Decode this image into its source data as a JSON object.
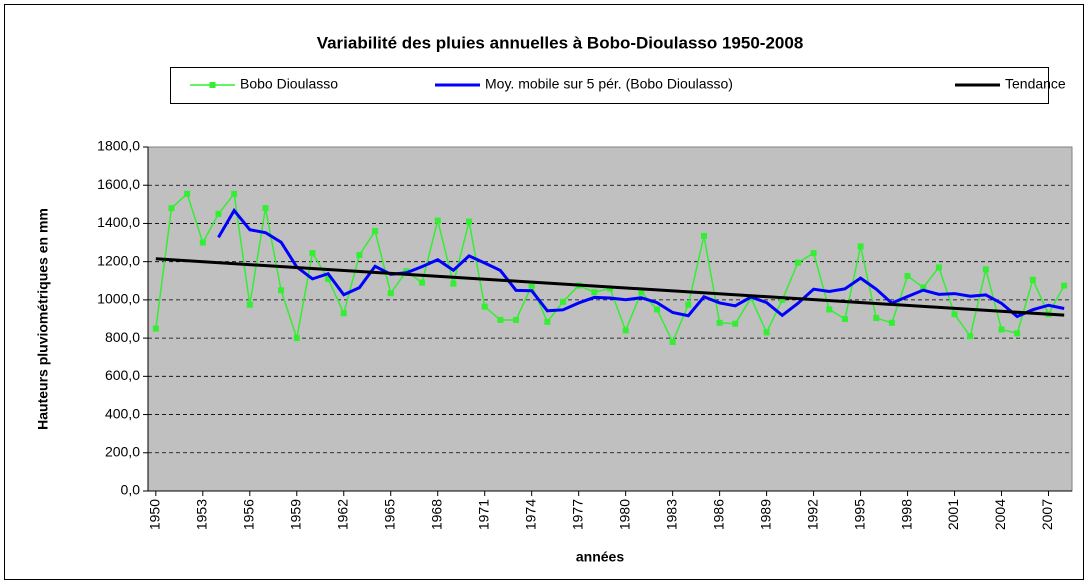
{
  "chart_data": {
    "type": "line",
    "title": "Variabilité des pluies annuelles à Bobo-Dioulasso 1950-2008",
    "x_label": "années",
    "y_label": "Hauteurs pluviométriques en mm",
    "x": [
      1950,
      1951,
      1952,
      1953,
      1954,
      1955,
      1956,
      1957,
      1958,
      1959,
      1960,
      1961,
      1962,
      1963,
      1964,
      1965,
      1966,
      1967,
      1968,
      1969,
      1970,
      1971,
      1972,
      1973,
      1974,
      1975,
      1976,
      1977,
      1978,
      1979,
      1980,
      1981,
      1982,
      1983,
      1984,
      1985,
      1986,
      1987,
      1988,
      1989,
      1990,
      1991,
      1992,
      1993,
      1994,
      1995,
      1996,
      1997,
      1998,
      1999,
      2000,
      2001,
      2002,
      2003,
      2004,
      2005,
      2006,
      2007,
      2008
    ],
    "xlim": [
      1949.5,
      2008.5
    ],
    "xticks": [
      1950,
      1953,
      1956,
      1959,
      1962,
      1965,
      1968,
      1971,
      1974,
      1977,
      1980,
      1983,
      1986,
      1989,
      1992,
      1995,
      1998,
      2001,
      2004,
      2007
    ],
    "ylim": [
      0,
      1800
    ],
    "yticks": [
      {
        "value": 0,
        "label": "0,0"
      },
      {
        "value": 200,
        "label": "200,0"
      },
      {
        "value": 400,
        "label": "400,0"
      },
      {
        "value": 600,
        "label": "600,0"
      },
      {
        "value": 800,
        "label": "800,0"
      },
      {
        "value": 1000,
        "label": "1000,0"
      },
      {
        "value": 1200,
        "label": "1200,0"
      },
      {
        "value": 1400,
        "label": "1400,0"
      },
      {
        "value": 1600,
        "label": "1600,0"
      },
      {
        "value": 1800,
        "label": "1800,0"
      }
    ],
    "grid": true,
    "series": [
      {
        "name": "Bobo Dioulasso",
        "color": "#33ee33",
        "marker": "square",
        "values": [
          850,
          1480,
          1555,
          1300,
          1450,
          1555,
          975,
          1480,
          1050,
          800,
          1245,
          1110,
          930,
          1235,
          1360,
          1035,
          1150,
          1090,
          1415,
          1085,
          1410,
          965,
          895,
          895,
          1075,
          885,
          990,
          1075,
          1040,
          1060,
          840,
          1040,
          950,
          780,
          975,
          1335,
          880,
          875,
          1010,
          830,
          1000,
          1195,
          1245,
          950,
          900,
          1280,
          905,
          880,
          1125,
          1065,
          1170,
          925,
          810,
          1160,
          845,
          825,
          1105,
          925,
          1075
        ]
      },
      {
        "name": "Moy. mobile sur 5 pér. (Bobo Dioulasso)",
        "color": "#0000ff",
        "values": [
          null,
          null,
          null,
          null,
          1327,
          1468,
          1367,
          1352,
          1302,
          1172,
          1110,
          1137,
          1027,
          1064,
          1176,
          1134,
          1142,
          1174,
          1210,
          1155,
          1230,
          1193,
          1154,
          1050,
          1048,
          943,
          948,
          984,
          1013,
          1010,
          1001,
          1011,
          986,
          934,
          917,
          1016,
          984,
          969,
          1015,
          986,
          919,
          982,
          1056,
          1044,
          1058,
          1114,
          1056,
          983,
          1018,
          1051,
          1029,
          1033,
          1019,
          1026,
          982,
          913,
          949,
          972,
          955
        ]
      },
      {
        "name": "Tendance",
        "color": "#000000",
        "x": [
          1950,
          2008
        ],
        "values": [
          1215,
          920
        ]
      }
    ]
  }
}
